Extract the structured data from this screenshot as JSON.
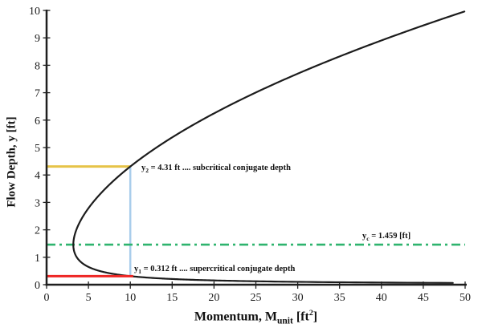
{
  "chart_data": {
    "type": "line",
    "title": "",
    "xlabel": "Momentum, M_unit [ft²]",
    "ylabel": "Flow Depth, y [ft]",
    "xlim": [
      0,
      50
    ],
    "ylim": [
      0,
      10
    ],
    "x_ticks": [
      0,
      5,
      10,
      15,
      20,
      25,
      30,
      35,
      40,
      45,
      50
    ],
    "y_ticks": [
      0,
      1,
      2,
      3,
      4,
      5,
      6,
      7,
      8,
      9,
      10
    ],
    "grid": false,
    "legend": "none",
    "curve": {
      "name": "momentum-function-curve",
      "equation": "M(y) = yc^3/y + y^2/2",
      "yc": 1.459,
      "color": "#1c1c1c",
      "sample_points_M_y": [
        [
          50.0,
          9.97
        ],
        [
          40.85,
          9.0
        ],
        [
          32.39,
          8.0
        ],
        [
          24.94,
          7.0
        ],
        [
          18.52,
          6.0
        ],
        [
          13.12,
          5.0
        ],
        [
          10.0,
          4.31
        ],
        [
          8.78,
          4.0
        ],
        [
          5.54,
          3.0
        ],
        [
          3.55,
          2.0
        ],
        [
          3.19,
          1.459
        ],
        [
          3.61,
          1.0
        ],
        [
          5.36,
          0.6
        ],
        [
          7.84,
          0.4
        ],
        [
          10.0,
          0.312
        ],
        [
          15.55,
          0.2
        ],
        [
          31.06,
          0.1
        ],
        [
          50.0,
          0.062
        ]
      ]
    },
    "key_points": {
      "minimum_momentum": {
        "M": 3.19,
        "y": 1.459
      },
      "subcritical_conjugate": {
        "M": 10,
        "y": 4.31
      },
      "supercritical_conjugate": {
        "M": 10,
        "y": 0.312
      }
    },
    "reference_lines": [
      {
        "name": "y2-line",
        "orientation": "horizontal",
        "y": 4.31,
        "x_from": 0,
        "x_to": 10,
        "color": "#e6c348",
        "width": 3,
        "style": "solid"
      },
      {
        "name": "y1-line",
        "orientation": "horizontal",
        "y": 0.312,
        "x_from": 0,
        "x_to": 10.35,
        "color": "#ee2624",
        "width": 3,
        "style": "solid"
      },
      {
        "name": "critical-depth-line",
        "orientation": "horizontal",
        "y": 1.459,
        "x_from": 0,
        "x_to": 50,
        "color": "#2eb46e",
        "width": 2.6,
        "style": "dash-dot"
      },
      {
        "name": "conjugate-link-line",
        "orientation": "vertical",
        "x": 10,
        "y_from": 0.312,
        "y_to": 4.31,
        "color": "#a9cdeb",
        "width": 2.5,
        "style": "solid"
      }
    ]
  },
  "axes": {
    "x": {
      "title_prefix": "Momentum, M",
      "title_sub": "unit",
      "title_mid": " [ft",
      "title_sup": "2",
      "title_end": "]",
      "ticks": [
        "0",
        "5",
        "10",
        "15",
        "20",
        "25",
        "30",
        "35",
        "40",
        "45",
        "50"
      ]
    },
    "y": {
      "title": "Flow Depth, y [ft]",
      "ticks": [
        "0",
        "1",
        "2",
        "3",
        "4",
        "5",
        "6",
        "7",
        "8",
        "9",
        "10"
      ]
    }
  },
  "annotations": {
    "y2": {
      "prefix": "y",
      "sub": "2",
      "text": " = 4.31 ft .... subcritical conjugate depth"
    },
    "y1": {
      "prefix": "y",
      "sub": "1",
      "text": " = 0.312 ft .... supercritical conjugate depth"
    },
    "yc": {
      "prefix": "y",
      "sub": "c",
      "text": " = 1.459 [ft]"
    }
  },
  "colors": {
    "curve": "#1c1c1c",
    "axis": "#1f1f1f",
    "subcritical_line": "#e6c348",
    "supercritical_line": "#ee2624",
    "critical_depth_line": "#2eb46e",
    "conjugate_link_line": "#a9cdeb",
    "background": "#ffffff"
  }
}
